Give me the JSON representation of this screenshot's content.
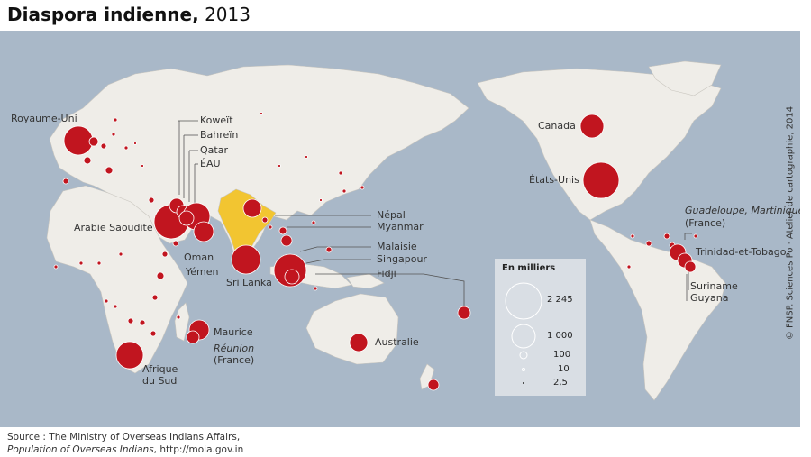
{
  "title": {
    "bold": "Diaspora indienne,",
    "rest": " 2013"
  },
  "source": {
    "line1": "Source : The Ministry of Overseas Indians Affairs,",
    "line2_italic": "Population of Overseas Indians",
    "line2_rest": ", http://moia.gov.in"
  },
  "credit": "© FNSP. Sciences Po · Atelier de cartographie, 2014",
  "legend": {
    "title": "En milliers",
    "values": [
      "2 245",
      "1 000",
      "100",
      "10",
      "2,5"
    ]
  },
  "colors": {
    "sea": "#a9b8c8",
    "land": "#efede8",
    "circle": "#c1151f",
    "india": "#f2c531",
    "legend_bg": "#d9dee4"
  },
  "labels": {
    "royaume_uni": "Royaume-Uni",
    "koweit": "Koweït",
    "bahrein": "Bahreïn",
    "qatar": "Qatar",
    "eau": "ÉAU",
    "arabie": "Arabie Saoudite",
    "oman": "Oman",
    "yemen": "Yémen",
    "sri_lanka": "Sri Lanka",
    "nepal": "Népal",
    "myanmar": "Myanmar",
    "malaisie": "Malaisie",
    "singapour": "Singapour",
    "fidji": "Fidji",
    "maurice": "Maurice",
    "reunion": "Réunion",
    "reunion_fr": "(France)",
    "afrique1": "Afrique",
    "afrique2": "du Sud",
    "australie": "Australie",
    "canada": "Canada",
    "etats_unis": "États-Unis",
    "guadeloupe": "Guadeloupe, Martinique",
    "guadeloupe_fr": "(France)",
    "trinidad": "Trinidad-et-Tobago",
    "suriname": "Suriname",
    "guyana": "Guyana"
  }
}
